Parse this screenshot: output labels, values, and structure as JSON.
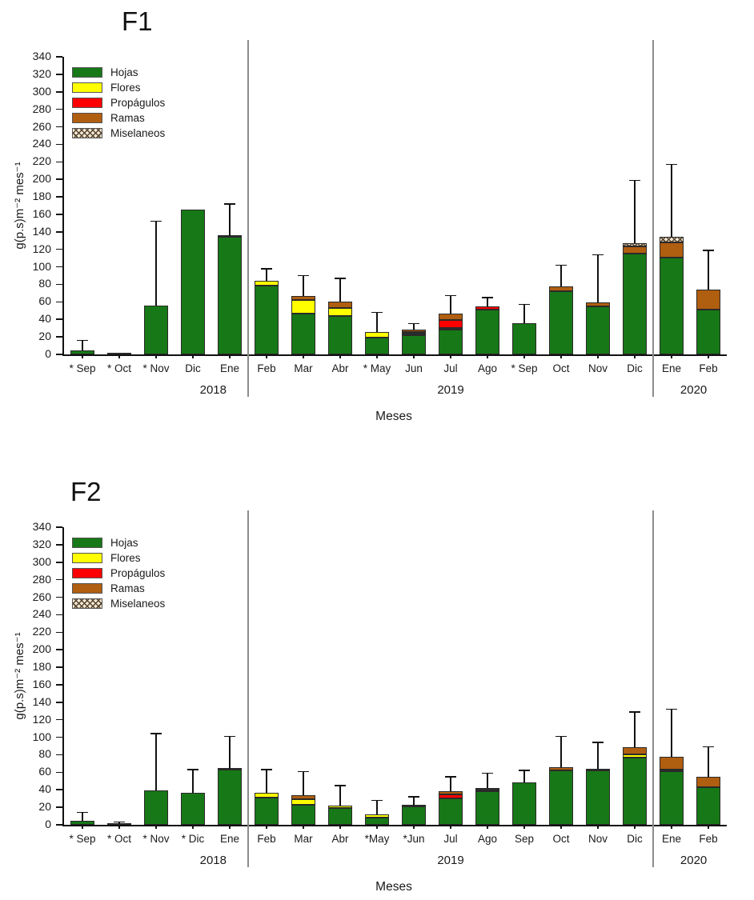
{
  "page": {
    "background": "#ffffff"
  },
  "colors": {
    "Hojas": "#177817",
    "Flores": "#ffff00",
    "Propágulos": "#ff0000",
    "Ramas": "#b05e10",
    "Miselaneos": "#f2e7d2",
    "hatch_line": "#55432e",
    "bar_border": "#2a2a2a",
    "axis": "#111111",
    "divider": "#8c8c8c",
    "text": "#1a1a1a"
  },
  "legend": {
    "items": [
      "Hojas",
      "Flores",
      "Propágulos",
      "Ramas",
      "Miselaneos"
    ]
  },
  "chart_data": [
    {
      "type": "bar",
      "title": "F1",
      "xlabel": "Meses",
      "ylabel": "g(p.s)m⁻² mes⁻¹",
      "ylim": [
        0,
        340
      ],
      "ytick_step": 20,
      "grid": false,
      "legend_position": "top-left",
      "stacked": true,
      "categories": [
        "* Sep",
        "* Oct",
        "* Nov",
        "Dic",
        "Ene",
        "Feb",
        "Mar",
        "Abr",
        "* May",
        "Jun",
        "Jul",
        "Ago",
        "* Sep",
        "Oct",
        "Nov",
        "Dic",
        "Ene",
        "Feb"
      ],
      "year_groups": [
        {
          "label": "2018",
          "start": 0,
          "end": 4
        },
        {
          "label": "2019",
          "start": 5,
          "end": 15
        },
        {
          "label": "2020",
          "start": 16,
          "end": 17
        }
      ],
      "series": [
        {
          "name": "Hojas",
          "values": [
            5,
            1,
            56,
            165,
            134,
            79,
            47,
            44,
            19,
            22,
            28,
            51,
            36,
            72,
            55,
            115,
            111,
            51
          ]
        },
        {
          "name": "Flores",
          "values": [
            0,
            0,
            0,
            0,
            1,
            5,
            15,
            9,
            7,
            2,
            2,
            0,
            0,
            0,
            0,
            0,
            0,
            0
          ]
        },
        {
          "name": "Propágulos",
          "values": [
            0,
            0,
            0,
            0,
            0,
            0,
            0,
            0,
            0,
            2,
            9,
            4,
            0,
            0,
            0,
            0,
            0,
            0
          ]
        },
        {
          "name": "Ramas",
          "values": [
            0,
            0,
            0,
            0,
            0,
            0,
            5,
            7,
            0,
            2,
            8,
            0,
            0,
            6,
            4,
            8,
            17,
            23
          ]
        },
        {
          "name": "Miselaneos",
          "values": [
            0,
            0,
            0,
            0,
            0,
            0,
            0,
            0,
            0,
            0,
            0,
            0,
            0,
            0,
            0,
            4,
            6,
            0
          ]
        }
      ],
      "error_top": [
        16,
        null,
        152,
        null,
        172,
        98,
        90,
        87,
        48,
        35,
        67,
        65,
        57,
        102,
        114,
        199,
        217,
        119
      ]
    },
    {
      "type": "bar",
      "title": "F2",
      "xlabel": "Meses",
      "ylabel": "g(p.s)m⁻² mes⁻¹",
      "ylim": [
        0,
        340
      ],
      "ytick_step": 20,
      "grid": false,
      "legend_position": "top-left",
      "stacked": true,
      "categories": [
        "* Sep",
        "* Oct",
        "* Nov",
        "* Dic",
        "Ene",
        "Feb",
        "Mar",
        "Abr",
        "*May",
        "*Jun",
        "Jul",
        "Ago",
        "Sep",
        "Oct",
        "Nov",
        "Dic",
        "Ene",
        "Feb"
      ],
      "year_groups": [
        {
          "label": "2018",
          "start": 0,
          "end": 4
        },
        {
          "label": "2019",
          "start": 5,
          "end": 15
        },
        {
          "label": "2020",
          "start": 16,
          "end": 17
        }
      ],
      "series": [
        {
          "name": "Hojas",
          "values": [
            5,
            1,
            39,
            37,
            63,
            31,
            23,
            19,
            8,
            21,
            30,
            38,
            48,
            62,
            62,
            77,
            61,
            43
          ]
        },
        {
          "name": "Flores",
          "values": [
            0,
            0,
            0,
            0,
            1,
            6,
            6,
            3,
            4,
            0,
            0,
            0,
            0,
            0,
            0,
            3,
            2,
            0
          ]
        },
        {
          "name": "Propágulos",
          "values": [
            0,
            0,
            0,
            0,
            0,
            0,
            0,
            0,
            0,
            0,
            5,
            2,
            0,
            0,
            0,
            0,
            0,
            0
          ]
        },
        {
          "name": "Ramas",
          "values": [
            0,
            0,
            0,
            0,
            0,
            0,
            5,
            0,
            0,
            1,
            3,
            2,
            0,
            4,
            2,
            9,
            15,
            12
          ]
        },
        {
          "name": "Miselaneos",
          "values": [
            0,
            0,
            0,
            0,
            0,
            0,
            0,
            0,
            0,
            0,
            0,
            0,
            0,
            0,
            0,
            0,
            0,
            0
          ]
        }
      ],
      "error_top": [
        14,
        3,
        104,
        63,
        101,
        63,
        61,
        45,
        28,
        32,
        55,
        59,
        62,
        101,
        94,
        129,
        132,
        89
      ]
    }
  ]
}
